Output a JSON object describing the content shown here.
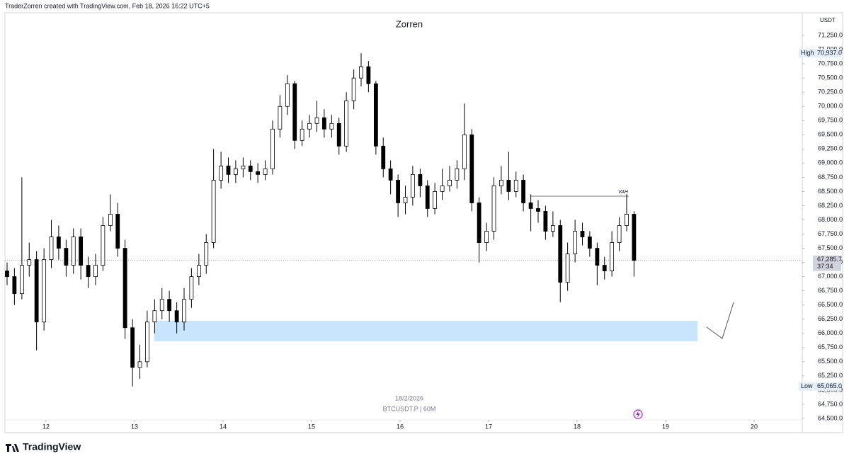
{
  "chart_data": {
    "type": "candlestick",
    "header": "TraderZorren created with TradingView.com, Feb 18, 2026 16:22 UTC+5",
    "title": "Zorren",
    "currency": "USDT",
    "watermark_date": "18/2/2026",
    "watermark_symbol": "BTCUSDT.P | 60M",
    "brand": "TradingView",
    "vah_label": "VAH",
    "up_color": "#ffffff",
    "down_color": "#000000",
    "outline_color": "#000000",
    "zone_color": "#bbdefb",
    "high_marker": {
      "name": "High",
      "value": 70937,
      "label": "70,937.0"
    },
    "low_marker": {
      "name": "Low",
      "value": 65065,
      "label": "65,065.0"
    },
    "last_price": {
      "value": 67285.7,
      "label": "67,285.7"
    },
    "countdown": "37:34",
    "xlim": [
      11.536,
      20.544
    ],
    "xticks": [
      12,
      13,
      14,
      15,
      16,
      17,
      18,
      19,
      20
    ],
    "ylim": [
      64250,
      71650
    ],
    "yticks": [
      {
        "value": 64500,
        "label": "64,500.0"
      },
      {
        "value": 64750,
        "label": "64,750.0"
      },
      {
        "value": 65000,
        "label": "65,000.0"
      },
      {
        "value": 65250,
        "label": "65,250.0"
      },
      {
        "value": 65500,
        "label": "65,500.0"
      },
      {
        "value": 65750,
        "label": "65,750.0"
      },
      {
        "value": 66000,
        "label": "66,000.0"
      },
      {
        "value": 66250,
        "label": "66,250.0"
      },
      {
        "value": 66500,
        "label": "66,500.0"
      },
      {
        "value": 66750,
        "label": "66,750.0"
      },
      {
        "value": 67000,
        "label": "67,000.0"
      },
      {
        "value": 67250,
        "label": "67,250.0"
      },
      {
        "value": 67500,
        "label": "67,500.0"
      },
      {
        "value": 67750,
        "label": "67,750.0"
      },
      {
        "value": 68000,
        "label": "68,000.0"
      },
      {
        "value": 68250,
        "label": "68,250.0"
      },
      {
        "value": 68500,
        "label": "68,500.0"
      },
      {
        "value": 68750,
        "label": "68,750.0"
      },
      {
        "value": 69000,
        "label": "69,000.0"
      },
      {
        "value": 69250,
        "label": "69,250.0"
      },
      {
        "value": 69500,
        "label": "69,500.0"
      },
      {
        "value": 69750,
        "label": "69,750.0"
      },
      {
        "value": 70000,
        "label": "70,000.0"
      },
      {
        "value": 70250,
        "label": "70,250.0"
      },
      {
        "value": 70500,
        "label": "70,500.0"
      },
      {
        "value": 70750,
        "label": "70,750.0"
      },
      {
        "value": 71000,
        "label": "71,000.0"
      },
      {
        "value": 71250,
        "label": "71,250.0"
      }
    ],
    "x": [
      11.56,
      11.643,
      11.727,
      11.81,
      11.893,
      11.977,
      12.06,
      12.143,
      12.227,
      12.31,
      12.393,
      12.477,
      12.56,
      12.643,
      12.727,
      12.81,
      12.893,
      12.977,
      13.06,
      13.143,
      13.227,
      13.31,
      13.393,
      13.477,
      13.56,
      13.643,
      13.727,
      13.81,
      13.893,
      13.977,
      14.06,
      14.143,
      14.227,
      14.31,
      14.393,
      14.477,
      14.56,
      14.643,
      14.727,
      14.81,
      14.893,
      14.977,
      15.06,
      15.143,
      15.227,
      15.31,
      15.393,
      15.477,
      15.56,
      15.643,
      15.727,
      15.81,
      15.893,
      15.977,
      16.06,
      16.143,
      16.227,
      16.31,
      16.393,
      16.477,
      16.56,
      16.643,
      16.727,
      16.81,
      16.893,
      16.977,
      17.06,
      17.143,
      17.227,
      17.31,
      17.393,
      17.477,
      17.56,
      17.643,
      17.727,
      17.81,
      17.893,
      17.977,
      18.06,
      18.143,
      18.227,
      18.31,
      18.393,
      18.477,
      18.56,
      18.643
    ],
    "open": [
      67100,
      67000,
      66700,
      67200,
      67300,
      66200,
      67300,
      67700,
      67500,
      67200,
      67700,
      67200,
      67000,
      67200,
      67900,
      68100,
      67500,
      66100,
      65400,
      65500,
      66200,
      66400,
      66600,
      66400,
      66200,
      66600,
      67000,
      67200,
      67600,
      68700,
      68950,
      68800,
      68900,
      68950,
      68850,
      68800,
      68900,
      69600,
      70000,
      70400,
      69400,
      69600,
      69700,
      69800,
      69600,
      69700,
      69300,
      70100,
      70500,
      70700,
      70400,
      69300,
      68900,
      68700,
      68300,
      68400,
      68800,
      68600,
      68200,
      68500,
      68600,
      68700,
      68900,
      69500,
      68300,
      67600,
      67800,
      68600,
      68700,
      68500,
      68700,
      68300,
      68200,
      68150,
      67800,
      67900,
      66900,
      67400,
      67800,
      67700,
      67500,
      67200,
      67100,
      67600,
      67900,
      68100
    ],
    "high": [
      67250,
      67150,
      68750,
      67600,
      67450,
      67500,
      68000,
      67900,
      67650,
      67850,
      67850,
      67350,
      67400,
      68050,
      68450,
      68300,
      67650,
      66250,
      65800,
      66400,
      66600,
      66800,
      66750,
      66550,
      66800,
      67150,
      67400,
      67750,
      69250,
      69200,
      69100,
      69050,
      69100,
      69050,
      69000,
      69050,
      69750,
      70200,
      70550,
      70450,
      69750,
      69850,
      70100,
      69950,
      69850,
      69800,
      70250,
      70650,
      70937,
      70800,
      70450,
      69450,
      69050,
      68800,
      68600,
      68950,
      68900,
      68700,
      68650,
      68900,
      68950,
      69050,
      70050,
      69600,
      68400,
      67950,
      68750,
      68950,
      69200,
      68850,
      68800,
      68450,
      68350,
      68250,
      68150,
      68000,
      67600,
      68000,
      67950,
      67800,
      67600,
      67350,
      67800,
      68050,
      68450,
      68150
    ],
    "low": [
      66850,
      66500,
      66600,
      67000,
      65700,
      66050,
      67150,
      67300,
      67000,
      67050,
      66950,
      66800,
      66850,
      67100,
      67800,
      67350,
      65900,
      65065,
      65200,
      65400,
      66000,
      66250,
      66200,
      66000,
      66050,
      66450,
      66850,
      67050,
      67500,
      68550,
      68650,
      68650,
      68750,
      68700,
      68650,
      68700,
      68800,
      69450,
      69850,
      69250,
      69300,
      69450,
      69550,
      69450,
      69450,
      69150,
      69200,
      69950,
      70350,
      70250,
      69150,
      68750,
      68450,
      68050,
      68100,
      68250,
      68400,
      68050,
      68100,
      68350,
      68500,
      68550,
      68700,
      68150,
      67250,
      67450,
      67650,
      68450,
      68350,
      68400,
      68150,
      67800,
      67950,
      67650,
      67700,
      66550,
      66750,
      67250,
      67550,
      67350,
      66850,
      66950,
      67000,
      67450,
      67800,
      67000
    ],
    "close": [
      67000,
      66700,
      67200,
      67300,
      66200,
      67300,
      67700,
      67500,
      67200,
      67700,
      67200,
      67000,
      67200,
      67900,
      68100,
      67500,
      66100,
      65400,
      65500,
      66200,
      66400,
      66600,
      66400,
      66200,
      66600,
      67000,
      67200,
      67600,
      68700,
      68950,
      68800,
      68900,
      68950,
      68850,
      68800,
      68900,
      69600,
      70000,
      70400,
      69400,
      69600,
      69700,
      69800,
      69600,
      69700,
      69300,
      70100,
      70500,
      70700,
      70400,
      69300,
      68900,
      68700,
      68300,
      68400,
      68800,
      68600,
      68200,
      68500,
      68600,
      68700,
      68900,
      69500,
      68300,
      67600,
      67800,
      68600,
      68700,
      68500,
      68700,
      68300,
      68200,
      68150,
      67800,
      67900,
      66900,
      67400,
      67800,
      67700,
      67500,
      67200,
      67100,
      67600,
      67900,
      68100,
      67285.7
    ]
  }
}
